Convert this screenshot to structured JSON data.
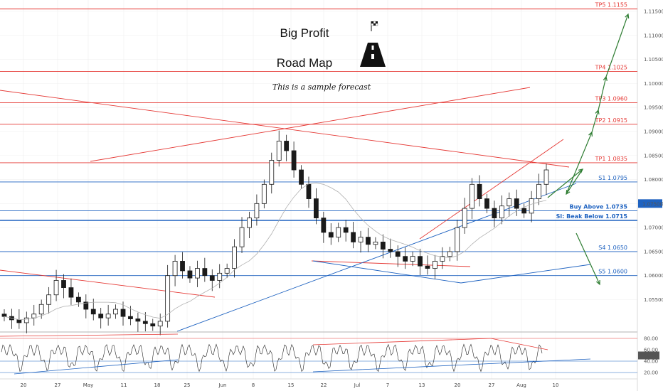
{
  "chart_data": {
    "type": "candlestick",
    "title": "Big Profit",
    "subtitle_line2": "Road Map",
    "note": "This is a sample forecast",
    "ylim": [
      1.048,
      1.1175
    ],
    "y_ticks": [
      "1.11500",
      "1.11000",
      "1.10500",
      "1.10000",
      "1.09500",
      "1.09000",
      "1.08500",
      "1.08000",
      "1.07500",
      "1.07000",
      "1.06500",
      "1.06000",
      "1.05500"
    ],
    "x_ticks": [
      "20",
      "27",
      "May",
      "11",
      "18",
      "25",
      "Jun",
      "8",
      "15",
      "22",
      "Jul",
      "7",
      "13",
      "20",
      "27",
      "Aug",
      "10"
    ],
    "price_tag": "1.07500",
    "levels": [
      {
        "label": "TP5 1.1155",
        "value": 1.1155,
        "kind": "tp",
        "color": "#e53935"
      },
      {
        "label": "TP4 1.1025",
        "value": 1.1025,
        "kind": "tp",
        "color": "#e53935"
      },
      {
        "label": "TP3 1.0960",
        "value": 1.096,
        "kind": "tp",
        "color": "#e53935"
      },
      {
        "label": "TP2 1.0915",
        "value": 1.0915,
        "kind": "tp",
        "color": "#e53935"
      },
      {
        "label": "TP1 1.0835",
        "value": 1.0835,
        "kind": "tp",
        "color": "#e53935"
      },
      {
        "label": "S1 1.0795",
        "value": 1.0795,
        "kind": "support",
        "color": "#1e62c0"
      },
      {
        "label": "Buy Above 1.0735",
        "value": 1.0735,
        "kind": "entry",
        "color": "#1e62c0"
      },
      {
        "label": "Sl: Beak Below 1.0715",
        "value": 1.0715,
        "kind": "stop",
        "color": "#1e62c0"
      },
      {
        "label": "S4 1.0650",
        "value": 1.065,
        "kind": "support",
        "color": "#1e62c0"
      },
      {
        "label": "S5 1.0600",
        "value": 1.06,
        "kind": "support",
        "color": "#1e62c0"
      }
    ],
    "candle_closes": [
      1.0515,
      1.0508,
      1.0502,
      1.0512,
      1.052,
      1.054,
      1.056,
      1.059,
      1.0575,
      1.0555,
      1.0545,
      1.053,
      1.052,
      1.0512,
      1.052,
      1.053,
      1.0515,
      1.051,
      1.0505,
      1.05,
      1.0495,
      1.0505,
      1.06,
      1.063,
      1.061,
      1.0595,
      1.0615,
      1.06,
      1.059,
      1.0605,
      1.0615,
      1.066,
      1.07,
      1.072,
      1.075,
      1.079,
      1.084,
      1.088,
      1.086,
      1.082,
      1.079,
      1.076,
      1.072,
      1.069,
      1.068,
      1.07,
      1.069,
      1.067,
      1.068,
      1.0665,
      1.067,
      1.0655,
      1.065,
      1.064,
      1.063,
      1.064,
      1.062,
      1.0615,
      1.063,
      1.064,
      1.065,
      1.07,
      1.074,
      1.079,
      1.076,
      1.074,
      1.072,
      1.0745,
      1.076,
      1.074,
      1.073,
      1.076,
      1.079,
      1.082
    ],
    "oscillator": {
      "ylim": [
        15,
        85
      ],
      "ticks": [
        "80.00",
        "60.00",
        "50.00",
        "40.00",
        "20.00"
      ],
      "current": "50.00"
    }
  }
}
